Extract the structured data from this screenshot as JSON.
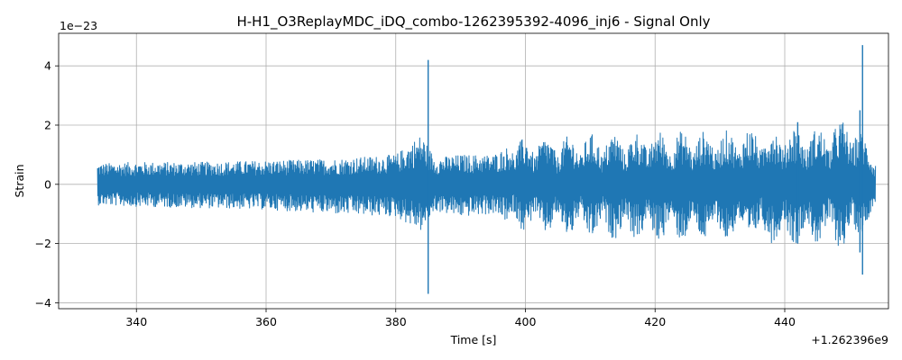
{
  "chart_data": {
    "type": "line",
    "title": "H-H1_O3ReplayMDC_iDQ_combo-1262395392-4096_inj6 - Signal Only",
    "xlabel": "Time [s]",
    "ylabel": "Strain",
    "x_offset_label": "+1.262396e9",
    "y_scale_label": "1e−23",
    "xlim": [
      328,
      456
    ],
    "ylim": [
      -4.2,
      5.1
    ],
    "x_ticks": [
      340,
      360,
      380,
      400,
      420,
      440
    ],
    "x_tick_labels": [
      "340",
      "360",
      "380",
      "400",
      "420",
      "440"
    ],
    "y_ticks": [
      -4,
      -2,
      0,
      2,
      4
    ],
    "y_tick_labels": [
      "−4",
      "−2",
      "0",
      "2",
      "4"
    ],
    "grid": true,
    "color": "#1f77b4",
    "series": [
      {
        "x_range": [
          334,
          454
        ],
        "envelope": [
          {
            "x": 334,
            "upper": 0.7,
            "lower": -0.7
          },
          {
            "x": 340,
            "upper": 0.75,
            "lower": -0.75
          },
          {
            "x": 350,
            "upper": 0.75,
            "lower": -0.8
          },
          {
            "x": 360,
            "upper": 0.8,
            "lower": -0.85
          },
          {
            "x": 370,
            "upper": 0.85,
            "lower": -1.0
          },
          {
            "x": 380,
            "upper": 1.0,
            "lower": -1.1
          },
          {
            "x": 384,
            "upper": 1.7,
            "lower": -1.6
          },
          {
            "x": 386,
            "upper": 0.9,
            "lower": -0.9
          },
          {
            "x": 390,
            "upper": 1.0,
            "lower": -1.1
          },
          {
            "x": 395,
            "upper": 1.0,
            "lower": -1.0
          },
          {
            "x": 400,
            "upper": 1.6,
            "lower": -1.6
          },
          {
            "x": 405,
            "upper": 1.6,
            "lower": -1.7
          },
          {
            "x": 410,
            "upper": 1.7,
            "lower": -1.8
          },
          {
            "x": 420,
            "upper": 1.8,
            "lower": -1.9
          },
          {
            "x": 430,
            "upper": 1.8,
            "lower": -1.9
          },
          {
            "x": 440,
            "upper": 2.0,
            "lower": -2.0
          },
          {
            "x": 445,
            "upper": 1.9,
            "lower": -2.0
          },
          {
            "x": 450,
            "upper": 2.3,
            "lower": -2.2
          },
          {
            "x": 454,
            "upper": 1.1,
            "lower": -1.0
          }
        ],
        "spikes": [
          {
            "x": 385.0,
            "upper": 4.2,
            "lower": -3.7
          },
          {
            "x": 452.0,
            "upper": 4.7,
            "lower": -3.05
          },
          {
            "x": 442.0,
            "upper": 2.1,
            "lower": -2.0
          },
          {
            "x": 451.6,
            "upper": 2.5,
            "lower": -2.3
          }
        ]
      }
    ]
  }
}
